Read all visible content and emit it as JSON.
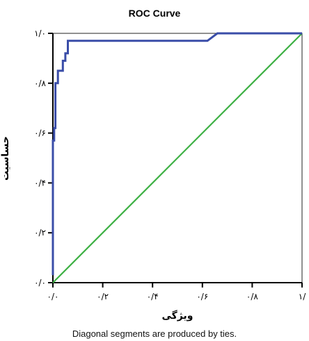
{
  "chart_data": {
    "type": "line",
    "title": "ROC Curve",
    "xlabel": "ویژگی",
    "ylabel": "حساسیت",
    "xlim": [
      0,
      1
    ],
    "ylim": [
      0,
      1
    ],
    "x_ticks": [
      {
        "value": 0.0,
        "label": "۰/۰"
      },
      {
        "value": 0.2,
        "label": "۰/۲"
      },
      {
        "value": 0.4,
        "label": "۰/۴"
      },
      {
        "value": 0.6,
        "label": "۰/۶"
      },
      {
        "value": 0.8,
        "label": "۰/۸"
      },
      {
        "value": 1.0,
        "label": "۱/"
      }
    ],
    "y_ticks": [
      {
        "value": 0.0,
        "label": "۰/۰"
      },
      {
        "value": 0.2,
        "label": "۰/۲"
      },
      {
        "value": 0.4,
        "label": "۰/۴"
      },
      {
        "value": 0.6,
        "label": "۰/۶"
      },
      {
        "value": 0.8,
        "label": "۰/۸"
      },
      {
        "value": 1.0,
        "label": "۱/۰"
      }
    ],
    "grid": false,
    "legend": "none",
    "series": [
      {
        "color": "#3a4da8",
        "x": [
          0.0,
          0.0,
          0.005,
          0.005,
          0.01,
          0.01,
          0.02,
          0.02,
          0.04,
          0.04,
          0.05,
          0.05,
          0.06,
          0.06,
          0.07,
          0.07,
          0.62,
          0.66,
          1.0
        ],
        "y": [
          0.03,
          0.57,
          0.57,
          0.62,
          0.62,
          0.8,
          0.8,
          0.85,
          0.85,
          0.89,
          0.89,
          0.92,
          0.92,
          0.97,
          0.97,
          0.97,
          0.97,
          1.0,
          1.0
        ]
      },
      {
        "color": "#3cb043",
        "x": [
          0.0,
          1.0
        ],
        "y": [
          0.0,
          1.0
        ]
      }
    ],
    "footnote": "Diagonal segments are produced by ties."
  }
}
